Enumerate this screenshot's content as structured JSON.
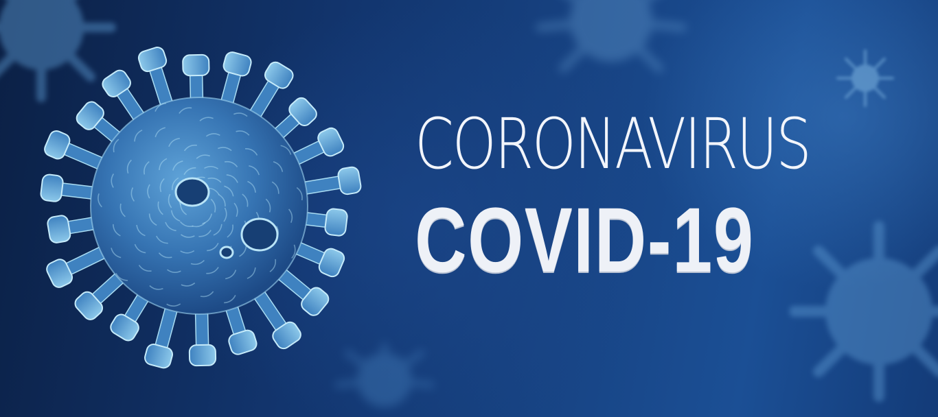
{
  "headline": {
    "line1": "CORONAVIRUS",
    "line2": "COVID-19"
  },
  "colors": {
    "background_dark": "#0b2045",
    "background_mid": "#174383",
    "virus_body": "#3a7cbf",
    "virus_highlight": "#a9dcf2",
    "text": "#f2f5fb"
  }
}
